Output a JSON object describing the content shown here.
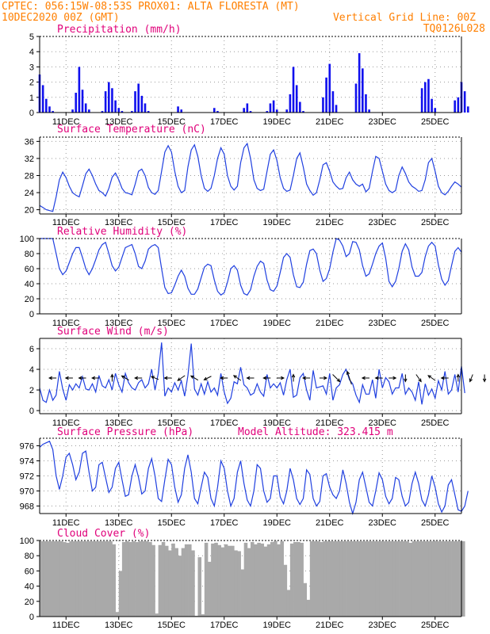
{
  "header": {
    "line1_left": "CPTEC:   056:15W-08:53S   PROX01: ALTA FLORESTA (MT)",
    "line2_left": "10DEC2020 00Z (GMT)",
    "line1_right": "Vertical Grid Line: 00Z",
    "line2_right": "TQ0126L028"
  },
  "colors": {
    "header": "#ff7f00",
    "panel_title": "#e0007a",
    "precip": "#1010ee",
    "line": "#2040e0",
    "arrow": "#000000",
    "cloud": "#a9a9a9"
  },
  "x_ticks": [
    "11DEC",
    "13DEC",
    "15DEC",
    "17DEC",
    "19DEC",
    "21DEC",
    "23DEC",
    "25DEC"
  ],
  "chart_data": [
    {
      "type": "bar",
      "title": "Precipitation (mm/h)",
      "ylim": [
        0,
        5
      ],
      "yticks": [
        "0",
        "1",
        "2",
        "3",
        "4",
        "5"
      ],
      "x_start": "10DEC2020 00Z",
      "time_step_hours": 3,
      "values": [
        2.5,
        1.8,
        0.9,
        0.4,
        0.1,
        0,
        0,
        0,
        0,
        0,
        0.2,
        1.3,
        3.0,
        1.5,
        0.6,
        0.2,
        0,
        0,
        0,
        0.1,
        1.4,
        2.0,
        1.6,
        0.8,
        0.3,
        0.1,
        0,
        0,
        0.1,
        1.4,
        1.9,
        1.1,
        0.6,
        0.1,
        0,
        0,
        0,
        0,
        0,
        0,
        0,
        0,
        0.4,
        0.2,
        0,
        0,
        0,
        0,
        0,
        0,
        0,
        0,
        0,
        0.3,
        0.1,
        0,
        0,
        0,
        0,
        0,
        0,
        0,
        0.3,
        0.6,
        0.1,
        0,
        0,
        0,
        0,
        0.1,
        0.6,
        0.8,
        0.2,
        0,
        0,
        0.2,
        1.2,
        3.0,
        1.8,
        0.7,
        0.1,
        0,
        0,
        0,
        0,
        0,
        1.0,
        2.3,
        3.2,
        1.4,
        0.5,
        0,
        0,
        0,
        0,
        0,
        1.9,
        3.9,
        2.9,
        1.2,
        0.2,
        0,
        0,
        0,
        0,
        0,
        0,
        0,
        0,
        0,
        0,
        0,
        0,
        0,
        0,
        0,
        1.6,
        2.0,
        2.2,
        0.9,
        0.3,
        0,
        0,
        0,
        0,
        0,
        0.8,
        1.0,
        2.0,
        1.4,
        0.4,
        0
      ]
    },
    {
      "type": "line",
      "title": "Surface Temperature (nC)",
      "ylim": [
        19,
        37
      ],
      "yticks": [
        "20",
        "24",
        "28",
        "32",
        "36"
      ],
      "x_start": "10DEC2020 00Z",
      "time_step_hours": 3,
      "values": [
        21.0,
        20.5,
        20.0,
        19.8,
        19.6,
        23.0,
        27.0,
        28.8,
        27.5,
        25.5,
        24.0,
        23.4,
        23.0,
        25.6,
        28.4,
        29.5,
        28.0,
        26.0,
        24.5,
        24.0,
        23.2,
        25.0,
        27.6,
        28.6,
        27.0,
        25.0,
        24.0,
        23.8,
        23.5,
        26.0,
        29.0,
        29.5,
        28.0,
        25.2,
        24.0,
        23.6,
        24.5,
        29.0,
        33.5,
        35.0,
        33.5,
        29.0,
        25.5,
        24.0,
        24.5,
        30.0,
        34.0,
        35.2,
        32.5,
        28.0,
        25.0,
        24.3,
        25.0,
        28.0,
        32.0,
        34.5,
        33.0,
        28.0,
        25.5,
        24.6,
        25.5,
        31.0,
        34.5,
        35.5,
        32.0,
        27.0,
        25.0,
        24.5,
        24.8,
        29.0,
        33.0,
        34.0,
        31.5,
        27.5,
        25.0,
        24.3,
        24.6,
        28.0,
        32.0,
        33.3,
        30.0,
        26.0,
        24.5,
        23.4,
        24.0,
        27.0,
        30.5,
        31.0,
        29.0,
        26.5,
        25.5,
        24.8,
        25.0,
        27.5,
        28.8,
        27.0,
        26.0,
        25.5,
        26.0,
        24.2,
        25.0,
        29.0,
        32.5,
        32.0,
        29.0,
        26.0,
        24.5,
        24.0,
        24.5,
        28.0,
        30.0,
        28.5,
        26.5,
        25.5,
        25.0,
        24.3,
        24.5,
        27.0,
        31.0,
        32.0,
        29.0,
        25.5,
        24.0,
        23.5,
        24.3,
        25.5,
        26.5,
        26.0,
        25.3
      ]
    },
    {
      "type": "line",
      "title": "Relative Humidity (%)",
      "ylim": [
        0,
        100
      ],
      "yticks": [
        "0",
        "20",
        "40",
        "60",
        "80",
        "100"
      ],
      "x_start": "10DEC2020 00Z",
      "time_step_hours": 3,
      "values": [
        100,
        100,
        100,
        100,
        100,
        80,
        60,
        52,
        57,
        68,
        80,
        88,
        88,
        75,
        60,
        52,
        60,
        72,
        85,
        92,
        95,
        80,
        64,
        57,
        62,
        75,
        88,
        90,
        92,
        80,
        63,
        60,
        70,
        86,
        90,
        92,
        88,
        60,
        35,
        27,
        28,
        38,
        50,
        58,
        50,
        34,
        26,
        26,
        33,
        48,
        62,
        66,
        64,
        45,
        30,
        25,
        28,
        42,
        60,
        64,
        58,
        38,
        27,
        25,
        32,
        50,
        63,
        70,
        67,
        45,
        32,
        30,
        37,
        55,
        75,
        80,
        75,
        52,
        36,
        35,
        42,
        66,
        84,
        86,
        80,
        58,
        43,
        47,
        60,
        82,
        100,
        98,
        90,
        76,
        80,
        96,
        95,
        85,
        64,
        50,
        53,
        66,
        80,
        90,
        94,
        74,
        43,
        36,
        43,
        60,
        83,
        93,
        85,
        62,
        50,
        50,
        55,
        76,
        90,
        95,
        90,
        65,
        46,
        38,
        44,
        64,
        83,
        88,
        82
      ]
    },
    {
      "type": "line",
      "title": "Surface Wind (m/s)",
      "ylim": [
        -0.3,
        7
      ],
      "yticks": [
        "0",
        "2",
        "4",
        "6"
      ],
      "x_start": "10DEC2020 00Z",
      "time_step_hours": 3,
      "values": [
        2.2,
        1.0,
        0.8,
        2.0,
        1.0,
        1.5,
        3.8,
        2.1,
        1.0,
        2.5,
        2.0,
        2.6,
        2.2,
        3.3,
        2.1,
        2.0,
        2.6,
        1.8,
        3.4,
        2.4,
        2.2,
        3.0,
        2.0,
        3.6,
        2.5,
        1.8,
        3.6,
        2.7,
        2.2,
        2.0,
        2.7,
        3.0,
        2.2,
        2.6,
        4.0,
        2.0,
        3.6,
        6.6,
        1.4,
        2.2,
        1.8,
        2.7,
        2.0,
        2.9,
        1.4,
        3.4,
        6.5,
        2.1,
        1.5,
        2.6,
        1.6,
        2.8,
        1.8,
        2.2,
        1.5,
        3.6,
        1.8,
        0.7,
        1.2,
        2.8,
        2.6,
        4.2,
        2.5,
        2.2,
        1.5,
        1.7,
        2.6,
        1.8,
        1.4,
        3.5,
        2.2,
        2.6,
        2.2,
        2.7,
        1.5,
        3.0,
        4.0,
        1.3,
        1.5,
        3.2,
        3.6,
        2.0,
        1.0,
        3.9,
        2.2,
        2.3,
        2.4,
        1.6,
        3.6,
        1.0,
        2.2,
        2.5,
        3.5,
        4.0,
        3.0,
        2.6,
        1.5,
        0.8,
        2.5,
        1.6,
        1.6,
        3.0,
        1.2,
        4.0,
        2.2,
        3.2,
        2.8,
        1.6,
        2.2,
        2.2,
        3.6,
        1.6,
        2.2,
        1.8,
        1.0,
        2.8,
        0.6,
        2.6,
        1.5,
        2.1,
        1.2,
        2.9,
        2.0,
        3.8,
        1.6,
        2.0,
        3.5,
        1.8,
        4.3,
        1.7
      ],
      "arrows": [
        {
          "t": 4,
          "u": -1,
          "v": 0
        },
        {
          "t": 9,
          "u": -1,
          "v": 0
        },
        {
          "t": 13,
          "u": -1,
          "v": 0
        },
        {
          "t": 17,
          "u": -1,
          "v": 0
        },
        {
          "t": 22,
          "u": 0,
          "v": 1
        },
        {
          "t": 26,
          "u": -1,
          "v": 0.6
        },
        {
          "t": 30,
          "u": -1,
          "v": 0
        },
        {
          "t": 35,
          "u": -1,
          "v": 0.4
        },
        {
          "t": 39,
          "u": -1,
          "v": 0
        },
        {
          "t": 43,
          "u": -1,
          "v": -0.7
        },
        {
          "t": 47,
          "u": -1,
          "v": 0.6
        },
        {
          "t": 51,
          "u": -1,
          "v": -0.5
        },
        {
          "t": 56,
          "u": -1,
          "v": 0
        },
        {
          "t": 60,
          "u": -1,
          "v": 0.7
        },
        {
          "t": 64,
          "u": -1,
          "v": 0
        },
        {
          "t": 69,
          "u": -1,
          "v": 0
        },
        {
          "t": 73,
          "u": 1,
          "v": 0
        },
        {
          "t": 77,
          "u": 0,
          "v": 1
        },
        {
          "t": 81,
          "u": -1,
          "v": 0
        },
        {
          "t": 86,
          "u": 1,
          "v": 0
        },
        {
          "t": 90,
          "u": 1,
          "v": -1
        },
        {
          "t": 94,
          "u": -0.6,
          "v": 1.8
        },
        {
          "t": 99,
          "u": -1,
          "v": 0
        },
        {
          "t": 103,
          "u": -1,
          "v": 0
        },
        {
          "t": 107,
          "u": 1,
          "v": 0
        },
        {
          "t": 111,
          "u": 0,
          "v": -1
        },
        {
          "t": 115,
          "u": 0.7,
          "v": -1
        },
        {
          "t": 119,
          "u": -1,
          "v": 0.7
        },
        {
          "t": 123,
          "u": -1,
          "v": 0
        },
        {
          "t": 127,
          "u": 0,
          "v": 1
        },
        {
          "t": 131,
          "u": -0.4,
          "v": -1
        },
        {
          "t": 135,
          "u": 0,
          "v": -1
        }
      ]
    },
    {
      "type": "line",
      "title": "Surface Pressure (hPa)",
      "annotation": "Model Altitude: 323.415 m",
      "ylim": [
        967,
        977
      ],
      "yticks": [
        "968",
        "970",
        "972",
        "974",
        "976"
      ],
      "x_start": "10DEC2020 00Z",
      "time_step_hours": 3,
      "values": [
        975.8,
        976.2,
        976.4,
        976.6,
        975.5,
        972.0,
        970.2,
        972.0,
        974.5,
        975.0,
        973.5,
        971.5,
        972.5,
        975.0,
        975.3,
        972.5,
        970.0,
        970.5,
        973.5,
        973.8,
        971.8,
        969.8,
        970.5,
        973.0,
        973.8,
        971.5,
        969.3,
        969.5,
        972.0,
        973.5,
        971.8,
        969.6,
        970.0,
        973.0,
        974.3,
        972.0,
        969.0,
        968.6,
        971.5,
        974.2,
        973.5,
        970.5,
        968.5,
        969.5,
        973.0,
        974.8,
        972.5,
        969.0,
        968.3,
        970.5,
        972.5,
        971.8,
        969.0,
        968.0,
        970.5,
        974.0,
        973.0,
        970.0,
        968.0,
        969.0,
        972.5,
        974.0,
        971.0,
        968.8,
        968.0,
        970.0,
        973.5,
        973.0,
        970.0,
        968.5,
        969.0,
        972.0,
        972.0,
        969.2,
        968.3,
        970.0,
        973.0,
        971.5,
        969.0,
        968.2,
        969.0,
        972.8,
        972.2,
        969.0,
        968.0,
        968.6,
        972.0,
        972.3,
        970.5,
        969.5,
        969.0,
        970.0,
        972.8,
        971.0,
        968.5,
        967.0,
        968.5,
        971.5,
        972.5,
        970.5,
        968.5,
        968.0,
        970.0,
        972.4,
        971.5,
        969.3,
        968.3,
        969.0,
        971.8,
        971.5,
        969.3,
        968.0,
        968.5,
        971.0,
        972.5,
        971.0,
        968.8,
        968.0,
        969.5,
        972.0,
        970.5,
        968.3,
        967.2,
        968.0,
        970.8,
        971.5,
        969.5,
        967.5,
        967.3,
        968.0,
        970.0
      ]
    },
    {
      "type": "bar",
      "title": "Cloud Cover (%)",
      "ylim": [
        0,
        100
      ],
      "yticks": [
        "0",
        "20",
        "40",
        "60",
        "80",
        "100"
      ],
      "x_start": "10DEC2020 00Z",
      "time_step_hours": 3,
      "values": [
        99,
        99,
        99,
        99,
        99,
        99,
        99,
        98,
        97,
        99,
        99,
        99,
        99,
        99,
        99,
        99,
        99,
        99,
        99,
        99,
        99,
        99,
        95,
        6,
        60,
        98,
        99,
        98,
        99,
        98,
        99,
        99,
        99,
        98,
        94,
        4,
        94,
        98,
        93,
        87,
        96,
        90,
        80,
        90,
        95,
        95,
        87,
        1,
        78,
        3,
        97,
        72,
        96,
        97,
        94,
        91,
        95,
        93,
        93,
        87,
        86,
        62,
        97,
        90,
        98,
        95,
        97,
        96,
        92,
        95,
        98,
        99,
        95,
        99,
        68,
        35,
        96,
        98,
        98,
        97,
        44,
        22,
        99,
        99,
        99,
        98,
        99,
        99,
        99,
        99,
        99,
        99,
        99,
        99,
        99,
        99,
        99,
        99,
        99,
        99,
        99,
        99,
        99,
        99,
        99,
        99,
        99,
        99,
        99,
        99,
        99,
        99,
        97,
        99,
        99,
        99,
        99,
        99,
        99,
        99,
        99,
        99,
        99,
        99,
        99,
        99,
        99,
        99,
        99
      ]
    }
  ]
}
